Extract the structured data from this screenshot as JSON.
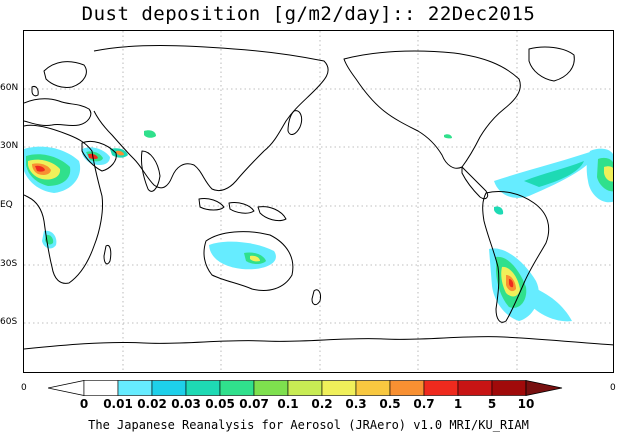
{
  "title": "Dust deposition [g/m2/day]:: 22Dec2015",
  "latitude_labels": [
    "60N",
    "30N",
    "EQ",
    "30S",
    "60S"
  ],
  "edge_labels": {
    "left": "0",
    "right": "0"
  },
  "colorbar": {
    "labels": [
      "0",
      "0.01",
      "0.02",
      "0.03",
      "0.05",
      "0.07",
      "0.1",
      "0.2",
      "0.3",
      "0.5",
      "0.7",
      "1",
      "5",
      "10"
    ],
    "colors": [
      "#ffffff",
      "#ffffff",
      "#66ecff",
      "#1ed0ea",
      "#1edab4",
      "#30e08c",
      "#7ee04e",
      "#c8ec54",
      "#f0f05a",
      "#f8c840",
      "#f89032",
      "#ef2a1e",
      "#c81414",
      "#a00a0a",
      "#781010"
    ]
  },
  "footer": "The Japanese Reanalysis for Aerosol (JRAero) v1.0 MRI/KU_RIAM"
}
